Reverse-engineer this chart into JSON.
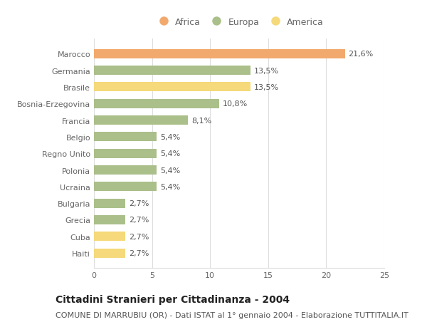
{
  "categories": [
    "Marocco",
    "Germania",
    "Brasile",
    "Bosnia-Erzegovina",
    "Francia",
    "Belgio",
    "Regno Unito",
    "Polonia",
    "Ucraina",
    "Bulgaria",
    "Grecia",
    "Cuba",
    "Haiti"
  ],
  "values": [
    21.6,
    13.5,
    13.5,
    10.8,
    8.1,
    5.4,
    5.4,
    5.4,
    5.4,
    2.7,
    2.7,
    2.7,
    2.7
  ],
  "labels": [
    "21,6%",
    "13,5%",
    "13,5%",
    "10,8%",
    "8,1%",
    "5,4%",
    "5,4%",
    "5,4%",
    "5,4%",
    "2,7%",
    "2,7%",
    "2,7%",
    "2,7%"
  ],
  "colors": [
    "#F2A96E",
    "#AABF8A",
    "#F5D97A",
    "#AABF8A",
    "#AABF8A",
    "#AABF8A",
    "#AABF8A",
    "#AABF8A",
    "#AABF8A",
    "#AABF8A",
    "#AABF8A",
    "#F5D97A",
    "#F5D97A"
  ],
  "legend_labels": [
    "Africa",
    "Europa",
    "America"
  ],
  "legend_colors": [
    "#F2A96E",
    "#AABF8A",
    "#F5D97A"
  ],
  "title": "Cittadini Stranieri per Cittadinanza - 2004",
  "subtitle": "COMUNE DI MARRUBIU (OR) - Dati ISTAT al 1° gennaio 2004 - Elaborazione TUTTITALIA.IT",
  "xlim": [
    0,
    25
  ],
  "xticks": [
    0,
    5,
    10,
    15,
    20,
    25
  ],
  "background_color": "#FFFFFF",
  "plot_bg_color": "#FFFFFF",
  "grid_color": "#DDDDDD",
  "title_fontsize": 10,
  "subtitle_fontsize": 8,
  "label_fontsize": 8,
  "tick_fontsize": 8,
  "legend_fontsize": 9,
  "bar_height": 0.55
}
